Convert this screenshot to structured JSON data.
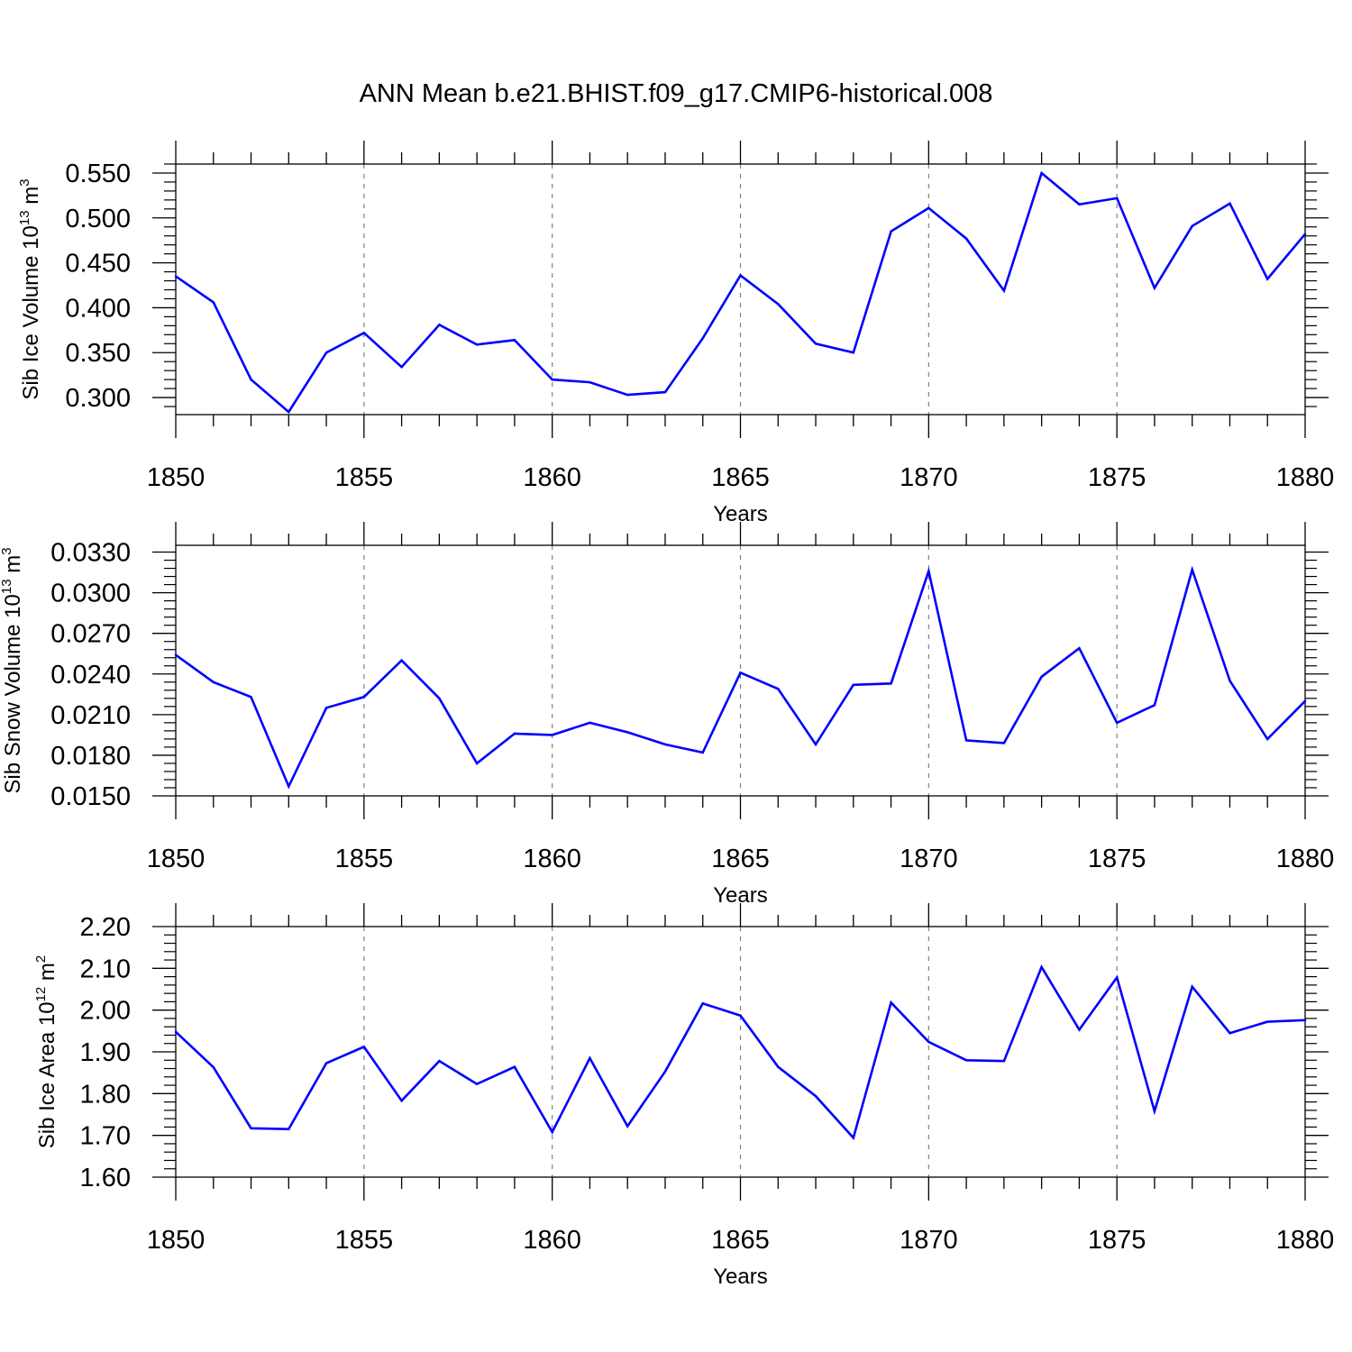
{
  "title": "ANN Mean b.e21.BHIST.f09_g17.CMIP6-historical.008",
  "colors": {
    "line": "#0000ff",
    "axis": "#000000",
    "grid": "#808080"
  },
  "chart_data": [
    {
      "type": "line",
      "xlabel": "Years",
      "ylabel": {
        "base": "Sib Ice Volume 10",
        "exp": "13",
        "unit": " m",
        "unit_exp": "3"
      },
      "xlim": [
        1850,
        1880
      ],
      "ylim": [
        0.281,
        0.56
      ],
      "xticks": [
        "1850",
        "1855",
        "1860",
        "1865",
        "1870",
        "1875",
        "1880"
      ],
      "yticks": [
        "0.300",
        "0.350",
        "0.400",
        "0.450",
        "0.500",
        "0.550"
      ],
      "grid": "vertical dashed at major x ticks",
      "x": [
        1850,
        1851,
        1852,
        1853,
        1854,
        1855,
        1856,
        1857,
        1858,
        1859,
        1860,
        1861,
        1862,
        1863,
        1864,
        1865,
        1866,
        1867,
        1868,
        1869,
        1870,
        1871,
        1872,
        1873,
        1874,
        1875,
        1876,
        1877,
        1878,
        1879,
        1880
      ],
      "values": [
        0.435,
        0.406,
        0.32,
        0.284,
        0.35,
        0.372,
        0.334,
        0.381,
        0.359,
        0.364,
        0.32,
        0.317,
        0.303,
        0.306,
        0.366,
        0.436,
        0.404,
        0.36,
        0.35,
        0.485,
        0.511,
        0.477,
        0.419,
        0.55,
        0.515,
        0.522,
        0.422,
        0.491,
        0.516,
        0.432,
        0.482
      ]
    },
    {
      "type": "line",
      "xlabel": "Years",
      "ylabel": {
        "base": "Sib Snow Volume 10",
        "exp": "13",
        "unit": " m",
        "unit_exp": "3"
      },
      "xlim": [
        1850,
        1880
      ],
      "ylim": [
        0.015,
        0.0335
      ],
      "xticks": [
        "1850",
        "1855",
        "1860",
        "1865",
        "1870",
        "1875",
        "1880"
      ],
      "yticks": [
        "0.0150",
        "0.0180",
        "0.0210",
        "0.0240",
        "0.0270",
        "0.0300",
        "0.0330"
      ],
      "grid": "vertical dashed at major x ticks",
      "x": [
        1850,
        1851,
        1852,
        1853,
        1854,
        1855,
        1856,
        1857,
        1858,
        1859,
        1860,
        1861,
        1862,
        1863,
        1864,
        1865,
        1866,
        1867,
        1868,
        1869,
        1870,
        1871,
        1872,
        1873,
        1874,
        1875,
        1876,
        1877,
        1878,
        1879,
        1880
      ],
      "values": [
        0.0254,
        0.0234,
        0.0223,
        0.0157,
        0.0215,
        0.0223,
        0.025,
        0.0222,
        0.0174,
        0.0196,
        0.0195,
        0.0204,
        0.0197,
        0.0188,
        0.0182,
        0.0241,
        0.0229,
        0.0188,
        0.0232,
        0.0233,
        0.0316,
        0.0191,
        0.0189,
        0.0238,
        0.0259,
        0.0204,
        0.0217,
        0.0317,
        0.0235,
        0.0192,
        0.022
      ]
    },
    {
      "type": "line",
      "xlabel": "Years",
      "ylabel": {
        "base": "Sib Ice Area 10",
        "exp": "12",
        "unit": " m",
        "unit_exp": "2"
      },
      "xlim": [
        1850,
        1880
      ],
      "ylim": [
        1.6,
        2.2
      ],
      "xticks": [
        "1850",
        "1855",
        "1860",
        "1865",
        "1870",
        "1875",
        "1880"
      ],
      "yticks": [
        "1.60",
        "1.70",
        "1.80",
        "1.90",
        "2.00",
        "2.10",
        "2.20"
      ],
      "grid": "vertical dashed at major x ticks",
      "x": [
        1850,
        1851,
        1852,
        1853,
        1854,
        1855,
        1856,
        1857,
        1858,
        1859,
        1860,
        1861,
        1862,
        1863,
        1864,
        1865,
        1866,
        1867,
        1868,
        1869,
        1870,
        1871,
        1872,
        1873,
        1874,
        1875,
        1876,
        1877,
        1878,
        1879,
        1880
      ],
      "values": [
        1.948,
        1.863,
        1.717,
        1.715,
        1.873,
        1.912,
        1.783,
        1.878,
        1.823,
        1.864,
        1.708,
        1.885,
        1.722,
        1.853,
        2.016,
        1.987,
        1.864,
        1.794,
        1.694,
        2.018,
        1.924,
        1.88,
        1.878,
        2.103,
        1.953,
        2.078,
        1.758,
        2.056,
        1.945,
        1.972,
        1.976
      ]
    }
  ]
}
